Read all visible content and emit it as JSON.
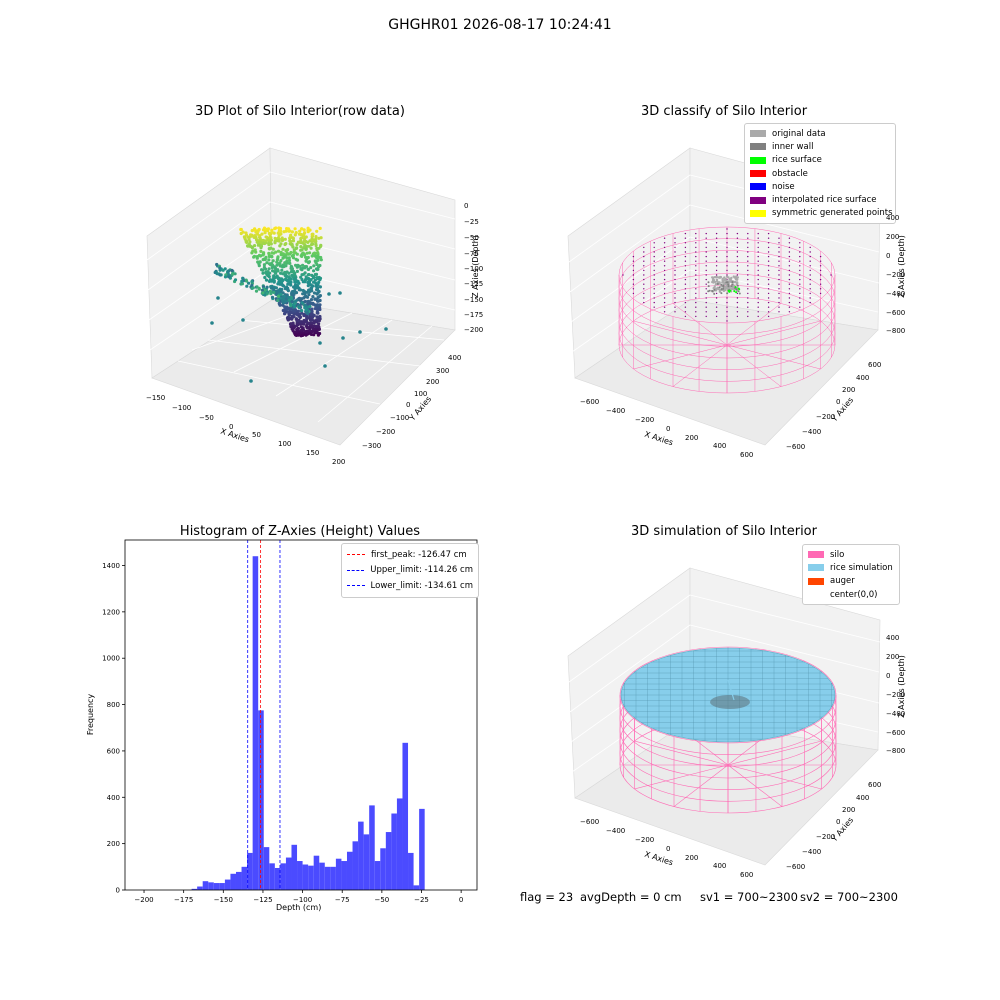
{
  "suptitle": "GHGHR01 2026-08-17 10:24:41",
  "footer": {
    "flag": "flag = 23",
    "avg_depth": "avgDepth = 0 cm",
    "sv1": "sv1 = 700~2300",
    "sv2": "sv2 = 700~2300"
  },
  "colors": {
    "histogram_bar": "#4b4bff",
    "first_peak_line": "#ff0000",
    "limit_lines": "#0000ff",
    "silo": "#ff69b4",
    "rice_simulation": "#87ceeb",
    "auger": "#ff4500",
    "original_data": "#aaaaaa",
    "inner_wall": "#808080",
    "rice_surface": "#00ff00",
    "obstacle": "#ff0000",
    "noise": "#0000ff",
    "interpolated_rice_surface": "#800080",
    "symmetric_generated_points": "#ffff00"
  },
  "plot_raw": {
    "title": "3D Plot of Silo Interior(row data)",
    "xlabel": "X Axies",
    "ylabel": "Y Axies",
    "zlabel": "Z Axies (Depth)",
    "x_ticks": [
      "−150",
      "−100",
      "−50",
      "0",
      "50",
      "100",
      "150",
      "200"
    ],
    "y_ticks": [
      "−300",
      "−200",
      "−100",
      "0",
      "100",
      "200",
      "300",
      "400"
    ],
    "z_ticks": [
      "0",
      "−25",
      "−50",
      "−75",
      "−100",
      "−125",
      "−150",
      "−175",
      "−200"
    ]
  },
  "plot_classify": {
    "title": "3D classify of Silo Interior",
    "xlabel": "X Axies",
    "ylabel": "Y Axies",
    "zlabel": "Z Axies (Depth)",
    "x_ticks": [
      "−600",
      "−400",
      "−200",
      "0",
      "200",
      "400",
      "600"
    ],
    "y_ticks": [
      "−600",
      "−400",
      "−200",
      "0",
      "200",
      "400",
      "600"
    ],
    "z_ticks": [
      "400",
      "200",
      "0",
      "−200",
      "−400",
      "−600",
      "−800"
    ],
    "legend": [
      {
        "label": "original data",
        "color": "#aaaaaa"
      },
      {
        "label": "inner wall",
        "color": "#808080"
      },
      {
        "label": "rice surface",
        "color": "#00ff00"
      },
      {
        "label": "obstacle",
        "color": "#ff0000"
      },
      {
        "label": "noise",
        "color": "#0000ff"
      },
      {
        "label": "interpolated rice surface",
        "color": "#800080"
      },
      {
        "label": "symmetric generated points",
        "color": "#ffff00"
      }
    ]
  },
  "plot_simulation": {
    "title": "3D simulation of Silo Interior",
    "xlabel": "X Axies",
    "ylabel": "Y Axies",
    "zlabel": "Z Axies (Depth)",
    "x_ticks": [
      "−600",
      "−400",
      "−200",
      "0",
      "200",
      "400",
      "600"
    ],
    "y_ticks": [
      "−600",
      "−400",
      "−200",
      "0",
      "200",
      "400",
      "600"
    ],
    "z_ticks": [
      "400",
      "200",
      "0",
      "−200",
      "−400",
      "−600",
      "−800"
    ],
    "legend": [
      {
        "label": "silo",
        "color": "#ff69b4"
      },
      {
        "label": "rice simulation",
        "color": "#87ceeb"
      },
      {
        "label": "auger",
        "color": "#ff4500"
      },
      {
        "label": "center(0,0)",
        "color": ""
      }
    ]
  },
  "chart_data": {
    "type": "bar",
    "title": "Histogram of Z-Axies (Height) Values",
    "xlabel": "Depth (cm)",
    "ylabel": "Frequency",
    "xlim": [
      -212,
      10
    ],
    "ylim": [
      0,
      1510
    ],
    "x_ticks": [
      -200,
      -175,
      -150,
      -125,
      -100,
      -75,
      -50,
      -25,
      0
    ],
    "y_ticks": [
      0,
      200,
      400,
      600,
      800,
      1000,
      1200,
      1400
    ],
    "bin_start": -170,
    "bin_width": 3.5,
    "values": [
      5,
      15,
      38,
      33,
      30,
      30,
      45,
      70,
      78,
      100,
      160,
      1440,
      775,
      185,
      115,
      95,
      115,
      140,
      195,
      125,
      110,
      105,
      148,
      118,
      100,
      100,
      135,
      125,
      165,
      210,
      295,
      240,
      365,
      125,
      180,
      250,
      330,
      395,
      635,
      160,
      20,
      350
    ],
    "vlines": [
      {
        "label": "first_peak: -126.47 cm",
        "x": -126.47,
        "color": "#ff0000"
      },
      {
        "label": "Upper_limit: -114.26 cm",
        "x": -114.26,
        "color": "#0000ff"
      },
      {
        "label": "Lower_limit: -134.61 cm",
        "x": -134.61,
        "color": "#0000ff"
      }
    ],
    "legend_position": "top-right",
    "grid": false
  }
}
